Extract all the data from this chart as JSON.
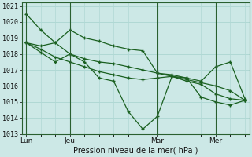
{
  "xlabel": "Pression niveau de la mer( hPa )",
  "ylim": [
    1013.0,
    1021.2
  ],
  "background_color": "#cce8e6",
  "grid_color": "#b0d8d4",
  "line_color": "#1a6020",
  "x_ticks_labels": [
    "Lun",
    "Jeu",
    "Mar",
    "Mer"
  ],
  "x_ticks_pos": [
    0,
    3,
    9,
    13
  ],
  "x_vlines": [
    0,
    3,
    9,
    13
  ],
  "yticks": [
    1013,
    1014,
    1015,
    1016,
    1017,
    1018,
    1019,
    1020,
    1021
  ],
  "line1_x": [
    0,
    1,
    2,
    3,
    4,
    5,
    6,
    7,
    8,
    9,
    10,
    11,
    12,
    13,
    14,
    15
  ],
  "line1_y": [
    1020.5,
    1019.5,
    1018.7,
    1018.0,
    1017.7,
    1017.5,
    1017.4,
    1017.2,
    1017.0,
    1016.8,
    1016.6,
    1016.4,
    1016.2,
    1016.0,
    1015.7,
    1015.1
  ],
  "line2_x": [
    0,
    1,
    2,
    3,
    4,
    5,
    6,
    7,
    8,
    9,
    10,
    11,
    12,
    13,
    14,
    15
  ],
  "line2_y": [
    1018.7,
    1018.1,
    1017.5,
    1018.0,
    1017.5,
    1016.5,
    1016.3,
    1014.4,
    1013.3,
    1014.1,
    1016.6,
    1016.5,
    1015.3,
    1015.0,
    1014.8,
    1015.1
  ],
  "line3_x": [
    0,
    1,
    2,
    3,
    4,
    5,
    6,
    7,
    8,
    9,
    10,
    11,
    12,
    13,
    14,
    15
  ],
  "line3_y": [
    1018.7,
    1018.5,
    1018.7,
    1019.5,
    1019.0,
    1018.8,
    1018.5,
    1018.3,
    1018.2,
    1016.8,
    1016.7,
    1016.5,
    1016.3,
    1017.2,
    1017.5,
    1015.2
  ],
  "line4_x": [
    0,
    1,
    2,
    3,
    4,
    5,
    6,
    7,
    8,
    9,
    10,
    11,
    12,
    13,
    14,
    15
  ],
  "line4_y": [
    1018.7,
    1018.3,
    1017.8,
    1017.5,
    1017.2,
    1016.9,
    1016.7,
    1016.5,
    1016.4,
    1016.5,
    1016.6,
    1016.3,
    1016.1,
    1015.5,
    1015.2,
    1015.1
  ],
  "n_points": 16,
  "xlim": [
    -0.3,
    15.3
  ]
}
